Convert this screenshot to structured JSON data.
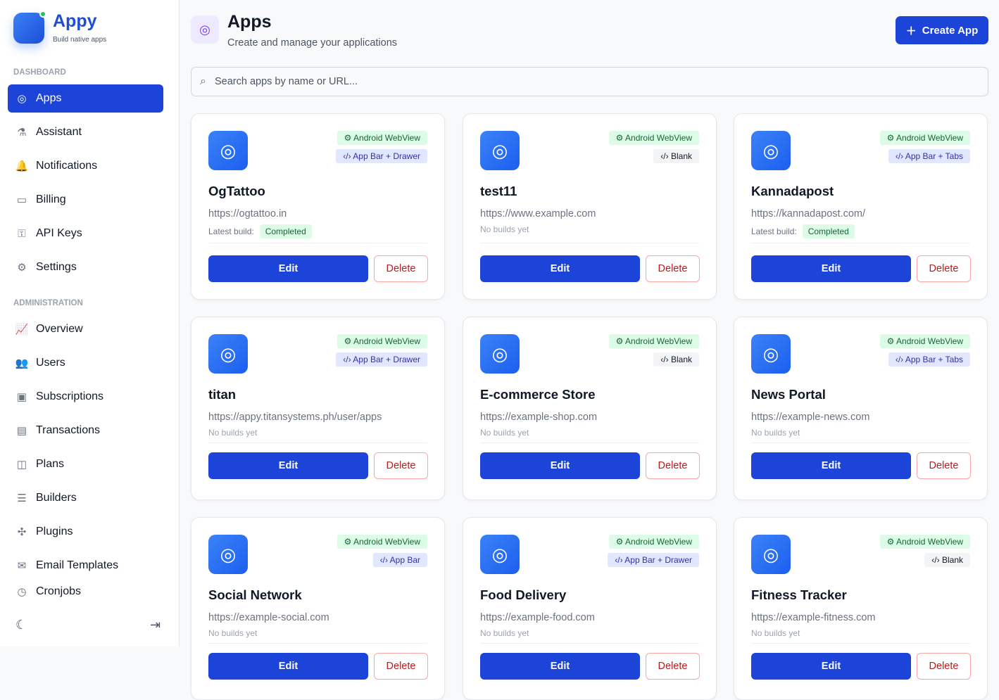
{
  "brand": {
    "name": "Appy",
    "tagline": "Build native apps"
  },
  "sidebar": {
    "dashboard_label": "DASHBOARD",
    "admin_label": "ADMINISTRATION",
    "items": [
      {
        "label": "Apps",
        "icon": "brain-icon",
        "glyph": "◎",
        "active": true
      },
      {
        "label": "Assistant",
        "icon": "flask-icon",
        "glyph": "⚗"
      },
      {
        "label": "Notifications",
        "icon": "bell-icon",
        "glyph": "🔔"
      },
      {
        "label": "Billing",
        "icon": "credit-card-icon",
        "glyph": "▭"
      },
      {
        "label": "API Keys",
        "icon": "key-icon",
        "glyph": "⚿"
      },
      {
        "label": "Settings",
        "icon": "settings-icon",
        "glyph": "⚙"
      }
    ],
    "admin_items": [
      {
        "label": "Overview",
        "icon": "chart-line-icon",
        "glyph": "📈"
      },
      {
        "label": "Users",
        "icon": "users-icon",
        "glyph": "👥"
      },
      {
        "label": "Subscriptions",
        "icon": "wallet-icon",
        "glyph": "▣"
      },
      {
        "label": "Transactions",
        "icon": "receipt-icon",
        "glyph": "▤"
      },
      {
        "label": "Plans",
        "icon": "plans-icon",
        "glyph": "◫"
      },
      {
        "label": "Builders",
        "icon": "database-icon",
        "glyph": "☰"
      },
      {
        "label": "Plugins",
        "icon": "puzzle-icon",
        "glyph": "✣"
      },
      {
        "label": "Email Templates",
        "icon": "mail-icon",
        "glyph": "✉"
      },
      {
        "label": "Cronjobs",
        "icon": "clock-icon",
        "glyph": "◷"
      }
    ]
  },
  "header": {
    "title": "Apps",
    "subtitle": "Create and manage your applications",
    "create_label": "Create App"
  },
  "search": {
    "placeholder": "Search apps by name or URL..."
  },
  "labels": {
    "latest_build": "Latest build:",
    "edit": "Edit",
    "delete": "Delete"
  },
  "apps": [
    {
      "name": "OgTattoo",
      "url": "https://ogtattoo.in",
      "platform": "Android WebView",
      "template": "App Bar + Drawer",
      "build": "Completed"
    },
    {
      "name": "test11",
      "url": "https://www.example.com",
      "platform": "Android WebView",
      "template": "Blank",
      "build": "No builds yet"
    },
    {
      "name": "Kannadapost",
      "url": "https://kannadapost.com/",
      "platform": "Android WebView",
      "template": "App Bar + Tabs",
      "build": "Completed"
    },
    {
      "name": "titan",
      "url": "https://appy.titansystems.ph/user/apps",
      "platform": "Android WebView",
      "template": "App Bar + Drawer",
      "build": "No builds yet"
    },
    {
      "name": "E-commerce Store",
      "url": "https://example-shop.com",
      "platform": "Android WebView",
      "template": "Blank",
      "build": "No builds yet"
    },
    {
      "name": "News Portal",
      "url": "https://example-news.com",
      "platform": "Android WebView",
      "template": "App Bar + Tabs",
      "build": "No builds yet"
    },
    {
      "name": "Social Network",
      "url": "https://example-social.com",
      "platform": "Android WebView",
      "template": "App Bar",
      "build": "No builds yet"
    },
    {
      "name": "Food Delivery",
      "url": "https://example-food.com",
      "platform": "Android WebView",
      "template": "App Bar + Drawer",
      "build": "No builds yet"
    },
    {
      "name": "Fitness Tracker",
      "url": "https://example-fitness.com",
      "platform": "Android WebView",
      "template": "Blank",
      "build": "No builds yet"
    }
  ]
}
